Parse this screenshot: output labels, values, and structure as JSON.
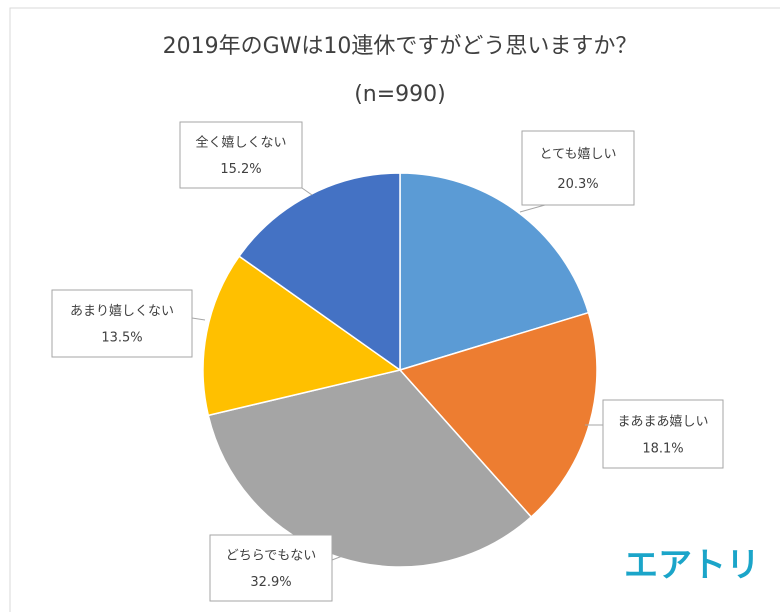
{
  "chart_data": {
    "type": "pie",
    "title": "2019年のGWは10連休ですがどう思いますか？",
    "subtitle": "(n=990)",
    "categories": [
      "とても嬉しい",
      "まあまあ嬉しい",
      "どちらでもない",
      "あまり嬉しくない",
      "全く嬉しくない"
    ],
    "values": [
      20.3,
      18.1,
      32.9,
      13.5,
      15.2
    ],
    "value_labels": [
      "20.3%",
      "18.1%",
      "32.9%",
      "13.5%",
      "15.2%"
    ],
    "colors": [
      "#5b9bd5",
      "#ed7d31",
      "#a5a5a5",
      "#ffc000",
      "#4472c4"
    ]
  },
  "logo": "エアトリ"
}
